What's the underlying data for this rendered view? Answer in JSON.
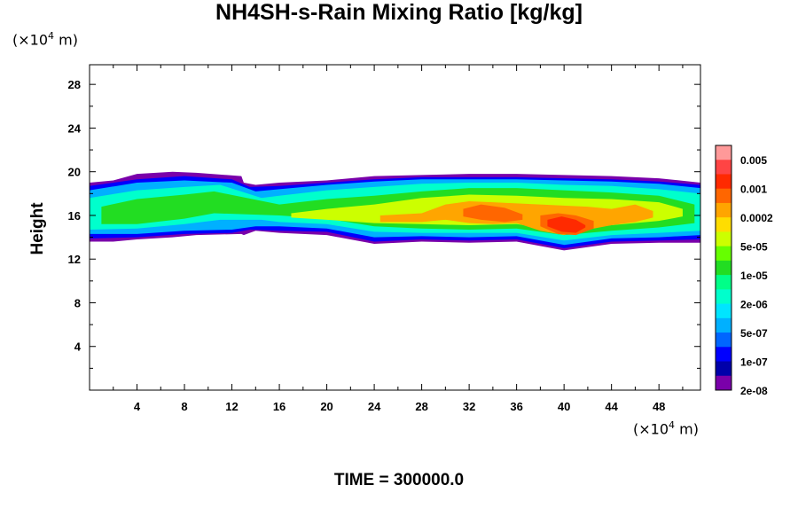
{
  "chart_data": {
    "type": "heatmap",
    "title": "NH4SH-s-Rain Mixing Ratio [kg/kg]",
    "ylabel": "Height",
    "y_unit_prefix": "(×10",
    "y_unit_exp": "4",
    "y_unit_suffix": " m)",
    "x_unit_prefix": "(×10",
    "x_unit_exp": "4",
    "x_unit_suffix": " m)",
    "footer": "TIME = 300000.0",
    "xlim": [
      0,
      51.5
    ],
    "ylim": [
      0,
      29.8
    ],
    "x_ticks": [
      4,
      8,
      12,
      16,
      20,
      24,
      28,
      32,
      36,
      40,
      44,
      48
    ],
    "y_ticks": [
      4,
      8,
      12,
      16,
      20,
      24,
      28
    ],
    "colorbar": {
      "labels": [
        "0.005",
        "0.001",
        "0.0002",
        "5e-05",
        "1e-05",
        "2e-06",
        "5e-07",
        "1e-07",
        "2e-08"
      ],
      "colors_top_to_bottom": [
        "#ff9999",
        "#ff4444",
        "#ff2a00",
        "#ff6600",
        "#ffa500",
        "#ffdd00",
        "#ccff00",
        "#66ff00",
        "#22dd22",
        "#00ff88",
        "#00ffcc",
        "#00e5ff",
        "#00b0ff",
        "#0066ff",
        "#0000ff",
        "#0000aa",
        "#7a00aa"
      ]
    },
    "bands": [
      {
        "level": 0,
        "color": "#7a00aa",
        "x": [
          0,
          2,
          4,
          7,
          9,
          12.8,
          13,
          14,
          16,
          20,
          24,
          28,
          32,
          36,
          40,
          44,
          48,
          51.5
        ],
        "top": [
          19,
          19.2,
          19.8,
          20.0,
          19.9,
          19.6,
          19,
          18.8,
          19.0,
          19.2,
          19.6,
          19.7,
          19.8,
          19.8,
          19.7,
          19.6,
          19.4,
          19
        ],
        "bottom": [
          13.6,
          13.6,
          13.8,
          14.0,
          14.2,
          14.3,
          14.2,
          14.6,
          14.4,
          14.2,
          13.4,
          13.6,
          13.5,
          13.6,
          12.8,
          13.4,
          13.5,
          13.5
        ]
      },
      {
        "level": 1,
        "color": "#0000ff",
        "x": [
          0,
          4,
          8,
          12,
          13.5,
          16,
          20,
          24,
          28,
          32,
          36,
          40,
          44,
          48,
          51.5
        ],
        "top": [
          18.7,
          19.3,
          19.6,
          19.3,
          18.6,
          18.7,
          19.0,
          19.3,
          19.5,
          19.5,
          19.5,
          19.4,
          19.3,
          19.1,
          18.8
        ],
        "bottom": [
          13.9,
          14.0,
          14.3,
          14.4,
          14.7,
          14.6,
          14.5,
          13.6,
          13.8,
          13.7,
          13.8,
          13.0,
          13.6,
          13.7,
          13.8
        ]
      },
      {
        "level": 2,
        "color": "#00b0ff",
        "x": [
          0,
          4,
          8,
          12,
          14,
          16,
          20,
          24,
          28,
          32,
          36,
          40,
          44,
          48,
          51.5
        ],
        "top": [
          18.3,
          19.0,
          19.2,
          19.0,
          18.2,
          18.4,
          18.8,
          19.1,
          19.3,
          19.3,
          19.3,
          19.2,
          19.1,
          18.9,
          18.5
        ],
        "bottom": [
          14.3,
          14.3,
          14.6,
          14.7,
          15.0,
          15.0,
          14.8,
          14.0,
          14.1,
          14.0,
          14.1,
          13.3,
          13.9,
          14.0,
          14.2
        ]
      },
      {
        "level": 3,
        "color": "#00ffcc",
        "x": [
          0,
          4,
          8,
          11,
          14.5,
          16,
          20,
          24,
          28,
          32,
          36,
          40,
          44,
          48,
          51.5
        ],
        "top": [
          17.6,
          18.3,
          18.6,
          18.8,
          17.6,
          17.8,
          18.3,
          18.6,
          18.9,
          19.0,
          19.0,
          18.8,
          18.7,
          18.4,
          18.0
        ],
        "bottom": [
          14.7,
          14.8,
          15.2,
          15.6,
          15.6,
          15.4,
          15.2,
          14.5,
          14.4,
          14.4,
          14.4,
          13.7,
          14.2,
          14.4,
          14.6
        ]
      },
      {
        "level": 4,
        "color": "#22dd22",
        "x": [
          1,
          4,
          8,
          10.5,
          16,
          20,
          24,
          28,
          32,
          36,
          40,
          44,
          48,
          51
        ],
        "top": [
          16.8,
          17.5,
          17.9,
          18.2,
          17.0,
          17.5,
          17.8,
          18.2,
          18.5,
          18.5,
          18.3,
          18.1,
          17.8,
          17.0
        ],
        "bottom": [
          15.2,
          15.2,
          15.7,
          16.2,
          16.0,
          15.7,
          15.0,
          14.8,
          14.7,
          14.8,
          14.2,
          14.6,
          14.9,
          15.3
        ]
      },
      {
        "level": 5,
        "color": "#ccff00",
        "x": [
          17,
          20,
          24,
          28,
          32,
          36,
          40,
          44,
          48,
          50
        ],
        "top": [
          16.2,
          16.6,
          17.0,
          17.6,
          17.9,
          17.8,
          17.6,
          17.5,
          17.2,
          16.6
        ],
        "bottom": [
          15.8,
          15.6,
          15.3,
          15.2,
          15.1,
          15.2,
          14.6,
          15.1,
          15.5,
          15.9
        ]
      },
      {
        "level": 6,
        "color": "#ffa500",
        "x": [
          24.5,
          28,
          30,
          32,
          34,
          36,
          38,
          40,
          42,
          44,
          46,
          47.5
        ],
        "top": [
          16.0,
          16.2,
          17.0,
          17.3,
          17.2,
          17.1,
          17.0,
          16.9,
          16.8,
          16.6,
          17.0,
          16.4
        ],
        "bottom": [
          15.4,
          15.4,
          15.6,
          15.3,
          15.2,
          15.3,
          14.6,
          14.2,
          14.7,
          15.1,
          15.4,
          15.8
        ]
      },
      {
        "level": 7,
        "color": "#ff6600",
        "x": [
          31.5,
          33,
          35,
          36.5
        ],
        "top": [
          16.6,
          17.0,
          16.7,
          16.1
        ],
        "bottom": [
          15.9,
          15.6,
          15.4,
          15.6
        ]
      },
      {
        "level": 7,
        "color": "#ff6600",
        "x": [
          38,
          39.5,
          41,
          42.5
        ],
        "top": [
          16.0,
          16.2,
          16.0,
          15.5
        ],
        "bottom": [
          15.0,
          14.3,
          14.2,
          14.8
        ]
      },
      {
        "level": 8,
        "color": "#ff2a00",
        "x": [
          38.6,
          39.8,
          41,
          41.8
        ],
        "top": [
          15.6,
          15.9,
          15.6,
          15.1
        ],
        "bottom": [
          15.0,
          14.5,
          14.4,
          14.9
        ]
      }
    ]
  }
}
